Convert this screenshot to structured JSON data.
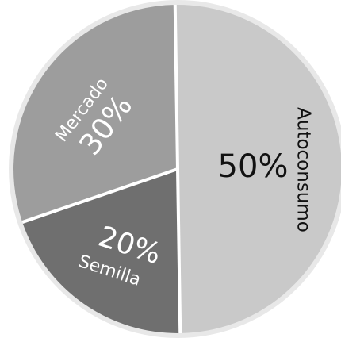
{
  "chart_data": {
    "type": "pie",
    "series": [
      {
        "slices": [
          {
            "label": "Autoconsumo",
            "value": 50,
            "value_label": "50%",
            "color": "#c9c9c9"
          },
          {
            "label": "Semilla",
            "value": 20,
            "value_label": "20%",
            "color": "#6f6f6f"
          },
          {
            "label": "Mercado",
            "value": 30,
            "value_label": "30%",
            "color": "#9d9d9d"
          }
        ]
      }
    ],
    "outer_ring_color": "#e8e8e8",
    "divider_color": "#ffffff",
    "legend": "none"
  }
}
